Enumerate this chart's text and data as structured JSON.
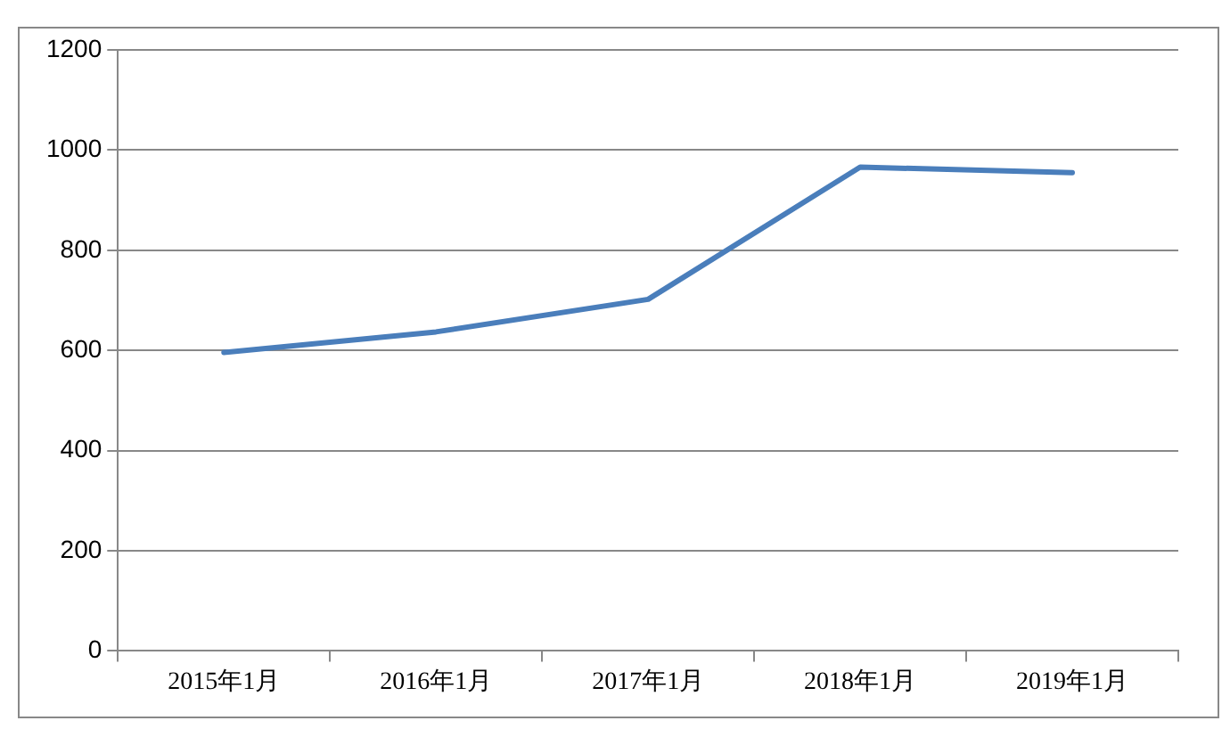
{
  "chart_data": {
    "type": "line",
    "categories": [
      "2015年1月",
      "2016年1月",
      "2017年1月",
      "2018年1月",
      "2019年1月"
    ],
    "series": [
      {
        "color": "#4a7ebb",
        "values": [
          596,
          637,
          702,
          966,
          955
        ]
      }
    ],
    "ylim": [
      0,
      1200
    ],
    "yticks": [
      0,
      200,
      400,
      600,
      800,
      1000,
      1200
    ],
    "grid": "y",
    "legend": false,
    "marker": "none",
    "line_style": "solid"
  }
}
